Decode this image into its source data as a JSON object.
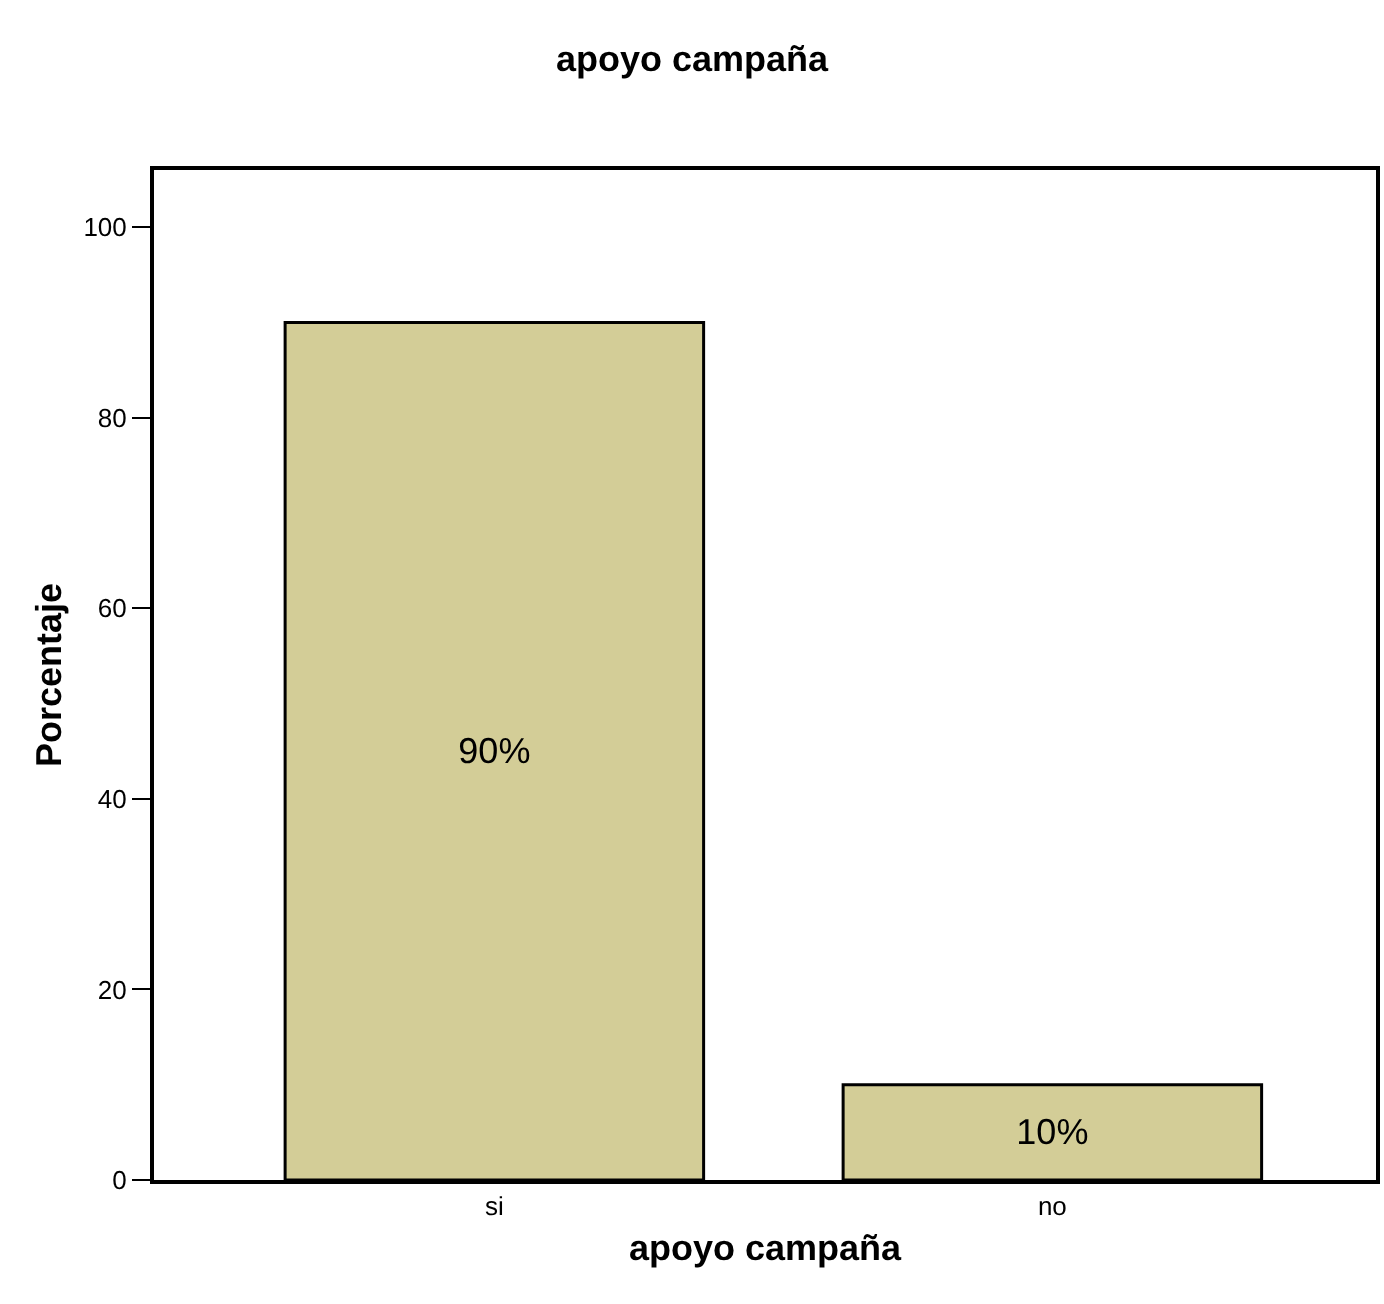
{
  "chart_data": {
    "type": "bar",
    "title": "apoyo campaña",
    "xlabel": "apoyo campaña",
    "ylabel": "Porcentaje",
    "categories": [
      "si",
      "no"
    ],
    "values": [
      90,
      10
    ],
    "value_labels": [
      "90%",
      "10%"
    ],
    "color": "#d3cd97",
    "ylim": [
      0,
      106
    ],
    "yticks": [
      0,
      20,
      40,
      60,
      80,
      100
    ]
  }
}
